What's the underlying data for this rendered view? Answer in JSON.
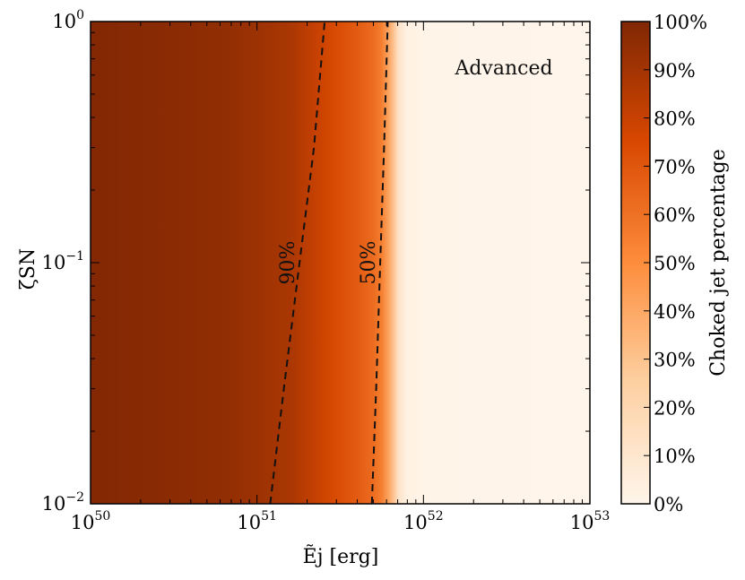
{
  "chart_data": {
    "type": "heatmap",
    "xlabel": "Ẽj [erg]",
    "ylabel": "ζSN",
    "xscale": "log",
    "yscale": "log",
    "xlim": [
      1e+50,
      1e+53
    ],
    "ylim": [
      0.01,
      1
    ],
    "x_ticks": [
      {
        "base": "10",
        "exp": "50"
      },
      {
        "base": "10",
        "exp": "51"
      },
      {
        "base": "10",
        "exp": "52"
      },
      {
        "base": "10",
        "exp": "53"
      }
    ],
    "y_ticks": [
      {
        "base": "10",
        "exp": "−2"
      },
      {
        "base": "10",
        "exp": "−1"
      },
      {
        "base": "10",
        "exp": "0"
      }
    ],
    "annotation": "Advanced",
    "colorbar": {
      "label": "Choked jet percentage",
      "colormap": [
        "#fff5eb",
        "#fdd0a2",
        "#fd8d3c",
        "#d94801",
        "#7f2704"
      ],
      "ticks": [
        "0%",
        "10%",
        "20%",
        "30%",
        "40%",
        "50%",
        "60%",
        "70%",
        "80%",
        "90%",
        "100%"
      ]
    },
    "percentage_profile": {
      "log10_E": [
        50.0,
        50.5,
        50.8,
        51.0,
        51.2,
        51.3,
        51.4,
        51.5,
        51.6,
        51.7,
        51.75,
        51.8,
        51.85,
        51.9,
        52.0,
        53.0
      ],
      "percent": [
        99,
        97,
        95,
        92,
        88,
        83,
        78,
        73,
        68,
        62,
        55,
        38,
        12,
        3,
        1,
        0
      ]
    },
    "contours": [
      {
        "label": "90%",
        "E": [
          1.2e+51,
          1.45e+51,
          1.8e+51,
          2.2e+51,
          2.55e+51
        ],
        "zeta": [
          0.01,
          0.03,
          0.1,
          0.3,
          1.0
        ]
      },
      {
        "label": "50%",
        "E": [
          4.9e+51,
          5.2e+51,
          5.5e+51,
          5.8e+51,
          6.1e+51
        ],
        "zeta": [
          0.01,
          0.03,
          0.1,
          0.3,
          1.0
        ]
      }
    ]
  }
}
